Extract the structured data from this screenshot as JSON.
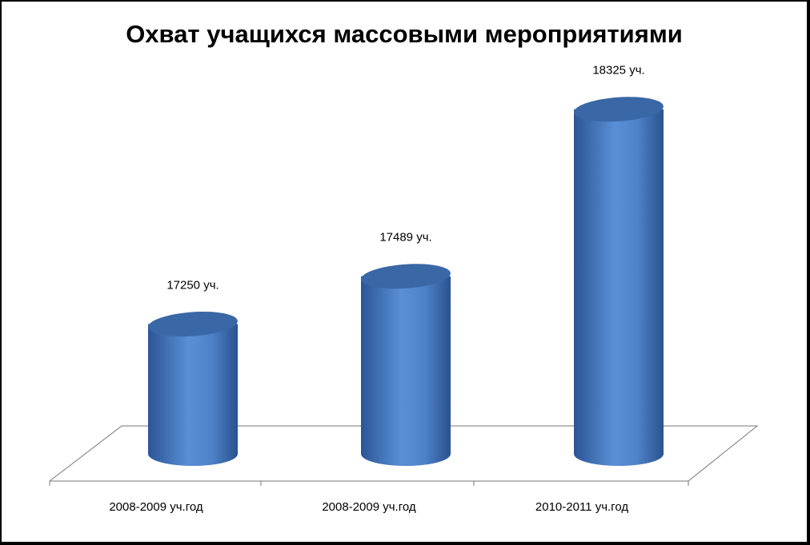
{
  "chart_data": {
    "type": "cylinder",
    "title": "Охват учащихся массовыми мероприятиями",
    "categories": [
      "2008-2009 уч.год",
      "2008-2009 уч.год",
      "2010-2011 уч.год"
    ],
    "values": [
      17250,
      17489,
      18325
    ],
    "value_labels": [
      "17250 уч.",
      "17489 уч.",
      "18325 уч."
    ],
    "color": "#4a7cc0",
    "ylim": [
      16600,
      18600
    ]
  }
}
